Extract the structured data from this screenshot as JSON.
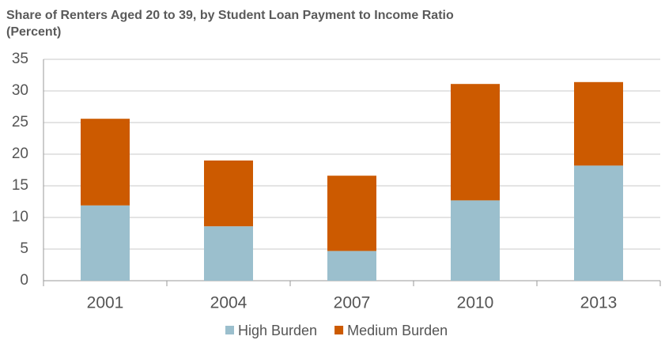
{
  "chart_data": {
    "type": "stacked_bar",
    "title": "Share of Renters Aged 20 to 39, by Student Loan Payment to Income Ratio",
    "subtitle": "(Percent)",
    "categories": [
      "2001",
      "2004",
      "2007",
      "2010",
      "2013"
    ],
    "series": [
      {
        "name": "High Burden",
        "color": "#9bbfcd",
        "values": [
          11.9,
          8.6,
          4.7,
          12.7,
          18.2
        ]
      },
      {
        "name": "Medium Burden",
        "color": "#cc5a00",
        "values": [
          13.7,
          10.4,
          11.9,
          18.4,
          13.2
        ]
      }
    ],
    "ylim": [
      0,
      35
    ],
    "yticks": [
      0,
      5,
      10,
      15,
      20,
      25,
      30,
      35
    ],
    "grid": true,
    "legend": "bottom"
  }
}
